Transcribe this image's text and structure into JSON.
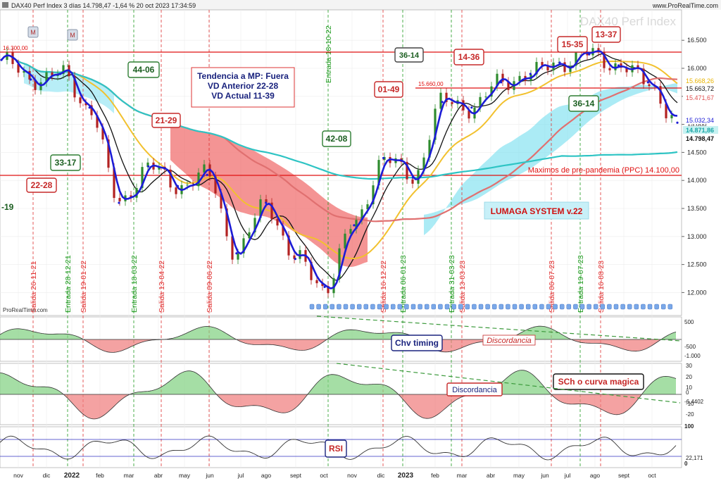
{
  "header": {
    "title": "DAX40 Perf Index 3 días 14.798,47 -1,64 % 20 oct 2023 17:34:59",
    "brand": "www.ProRealTime.com",
    "watermark": "DAX40 Perf Index",
    "credit": "ProRealTime.com"
  },
  "colors": {
    "price_line": "#1c1cd6",
    "sma_short": "#111111",
    "sma_mid": "#f2c12e",
    "sma_long": "#e07070",
    "sma_200": "#2ec4c4",
    "cloud_bull": "#7ee0f0",
    "cloud_bear": "#f07070",
    "resistance": "#e01010",
    "candle_up": "#2e8b2e",
    "candle_down": "#b22222",
    "exit_line": "#e03030",
    "entry_line": "#1e9a1e"
  },
  "price_axis": {
    "ticks": [
      "16.500",
      "16.000",
      "15.500",
      "15.000",
      "14.500",
      "14.000",
      "13.500",
      "13.000",
      "12.500",
      "12.000"
    ],
    "tags": [
      {
        "text": "15.668,26",
        "color": "#e8b400"
      },
      {
        "text": "15.663,72",
        "color": "#111111"
      },
      {
        "text": "15.471,67",
        "color": "#e05050"
      },
      {
        "text": "15.032,34",
        "color": "#1c1cd6"
      },
      {
        "text": "14.871,86",
        "color": "#1aa5a5"
      },
      {
        "text": "14.798,47",
        "color": "#111111"
      }
    ]
  },
  "levels": [
    {
      "label": "16.300,00",
      "text": ""
    },
    {
      "label": "15.660,00",
      "text": ""
    },
    {
      "label": "",
      "text": "Maximos de pre-pandemia (PPC) 14.100,00"
    }
  ],
  "markers": [
    "M",
    "M"
  ],
  "annotations": {
    "trend": [
      "Tendencia a MP: Fuera",
      "VD Anterior 22-28",
      "VD Actual 11-39"
    ],
    "system": "LUMAGA SYSTEM v.22",
    "boxes_green": [
      "44-06",
      "33-17",
      "42-08",
      "36-14",
      "36-14"
    ],
    "boxes_red": [
      "22-28",
      "21-29",
      "01-49",
      "14-36",
      "15-35",
      "13-37"
    ],
    "left_cut": "-19"
  },
  "vertical_labels": [
    {
      "text": "Salida 26-11-21"
    },
    {
      "text": "Entrada 28-12-21"
    },
    {
      "text": "Salida 19-01-22"
    },
    {
      "text": "Entrada 18-03-22"
    },
    {
      "text": "Salida 13-04-22"
    },
    {
      "text": "Salida 09-06-22"
    },
    {
      "text": "Entrada 18-10-22"
    },
    {
      "text": "Salida 16-12-22"
    },
    {
      "text": "Entrada 06-01-23"
    },
    {
      "text": "Entrada 31-03-23"
    },
    {
      "text": "Salida 13-03-23"
    },
    {
      "text": "Salida 06-07-23"
    },
    {
      "text": "Entrada 19-07-23"
    },
    {
      "text": "Salida 16-08-23"
    }
  ],
  "panels": {
    "chv": {
      "label": "Chv timing",
      "divergence": "Discordancia",
      "ticks": [
        "500",
        "-500",
        "-1.000"
      ]
    },
    "sch": {
      "label": "SCh o curva magica",
      "divergence": "Discordancia",
      "ticks": [
        "30",
        "20",
        "10",
        "0",
        "-10",
        "-20"
      ],
      "value": "-6,4402"
    },
    "rsi": {
      "label": "RSI",
      "ticks": [
        "100",
        "0"
      ],
      "value": "22,171"
    }
  },
  "x_axis": {
    "labels": [
      "nov",
      "dic",
      "2022",
      "feb",
      "mar",
      "abr",
      "may",
      "jun",
      "jul",
      "ago",
      "sept",
      "oct",
      "nov",
      "dic",
      "2023",
      "feb",
      "mar",
      "abr",
      "may",
      "jun",
      "jul",
      "ago",
      "sept",
      "oct"
    ]
  },
  "chart_data": {
    "type": "line",
    "title": "DAX40 Perf Index 3 días",
    "x": [
      "nov 21",
      "dic 21",
      "ene 22",
      "feb 22",
      "mar 22",
      "abr 22",
      "may 22",
      "jun 22",
      "jul 22",
      "ago 22",
      "sept 22",
      "oct 22",
      "nov 22",
      "dic 22",
      "ene 23",
      "feb 23",
      "mar 23",
      "abr 23",
      "may 23",
      "jun 23",
      "jul 23",
      "ago 23",
      "sept 23",
      "oct 23"
    ],
    "series": [
      {
        "values": [
          16150,
          15800,
          15900,
          15300,
          13600,
          14250,
          13900,
          14100,
          12700,
          13600,
          12600,
          12100,
          13200,
          14400,
          14050,
          15400,
          15300,
          15750,
          15900,
          16100,
          16250,
          16050,
          15750,
          15030
        ]
      }
    ],
    "levels": [
      16300,
      15660,
      14100
    ],
    "ylim": [
      11700,
      16800
    ],
    "grid": true
  }
}
